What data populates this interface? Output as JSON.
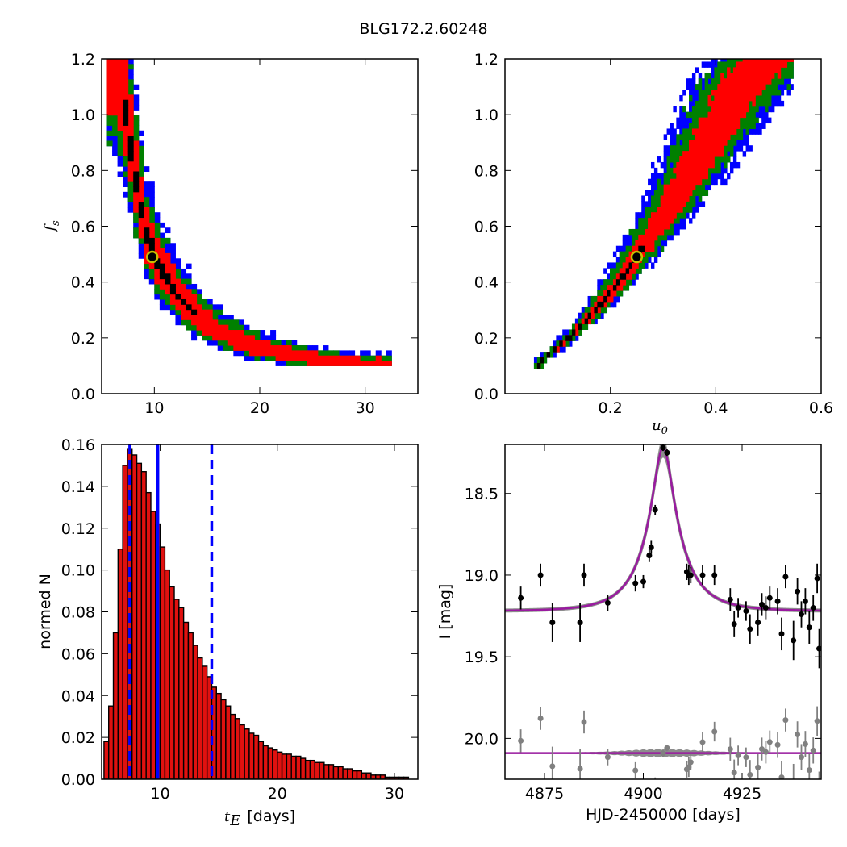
{
  "figure_title": "BLG172.2.60248",
  "colors": {
    "sigma3": "#0000ff",
    "sigma2": "#008000",
    "sigma1": "#ff0000",
    "best": "#000000",
    "marker_fill": "#000000",
    "marker_edge": "#c8c000",
    "hist_bar": "#e0110f",
    "hist_edge": "#000000",
    "quantile_line": "#0000ff",
    "model": "#9a1aa0",
    "model_band": "#808080",
    "data_primary": "#000000",
    "data_residual": "#808080"
  },
  "chart_data": [
    {
      "type": "heatmap",
      "panel": "fs-vs-tE",
      "ylabel": "f_s",
      "xlim": [
        5,
        35
      ],
      "ylim": [
        0.0,
        1.2
      ],
      "xticks": [
        "10",
        "20",
        "30"
      ],
      "yticks": [
        "0.0",
        "0.2",
        "0.4",
        "0.6",
        "0.8",
        "1.0",
        "1.2"
      ],
      "ridge": {
        "x": [
          6.0,
          7.0,
          8.0,
          9.0,
          10.0,
          12.0,
          14.0,
          17.0,
          20.0,
          24.0,
          28.0,
          32.0
        ],
        "y": [
          1.2,
          1.0,
          0.75,
          0.56,
          0.46,
          0.34,
          0.26,
          0.19,
          0.15,
          0.12,
          0.1,
          0.1
        ]
      },
      "best_fit": {
        "x": 9.8,
        "y": 0.49
      }
    },
    {
      "type": "heatmap",
      "panel": "fs-vs-u0",
      "xlabel": "u_0",
      "xlim": [
        0.0,
        0.6
      ],
      "ylim": [
        0.0,
        1.2
      ],
      "xticks": [
        "0.2",
        "0.4",
        "0.6"
      ],
      "yticks": [
        "0.0",
        "0.2",
        "0.4",
        "0.6",
        "0.8",
        "1.0",
        "1.2"
      ],
      "ridge": {
        "x": [
          0.06,
          0.1,
          0.15,
          0.2,
          0.25,
          0.3,
          0.35,
          0.4,
          0.45,
          0.5
        ],
        "y": [
          0.1,
          0.16,
          0.25,
          0.36,
          0.49,
          0.63,
          0.78,
          0.95,
          1.1,
          1.2
        ]
      },
      "best_fit": {
        "x": 0.25,
        "y": 0.49
      }
    },
    {
      "type": "bar",
      "panel": "tE-histogram",
      "xlabel": "t_E",
      "xlabel_unit": "[days]",
      "ylabel": "normed N",
      "xlim": [
        5,
        32
      ],
      "ylim": [
        0.0,
        0.16
      ],
      "xticks": [
        "10",
        "20",
        "30"
      ],
      "yticks": [
        "0.00",
        "0.02",
        "0.04",
        "0.06",
        "0.08",
        "0.10",
        "0.12",
        "0.14",
        "0.16"
      ],
      "bin_width": 0.4,
      "bin_start": 5.2,
      "values": [
        0.018,
        0.035,
        0.07,
        0.11,
        0.15,
        0.158,
        0.155,
        0.151,
        0.147,
        0.137,
        0.128,
        0.122,
        0.111,
        0.1,
        0.092,
        0.086,
        0.082,
        0.075,
        0.07,
        0.064,
        0.058,
        0.054,
        0.049,
        0.044,
        0.041,
        0.038,
        0.035,
        0.031,
        0.029,
        0.026,
        0.024,
        0.022,
        0.021,
        0.018,
        0.016,
        0.015,
        0.014,
        0.013,
        0.012,
        0.012,
        0.011,
        0.011,
        0.01,
        0.009,
        0.009,
        0.008,
        0.008,
        0.007,
        0.007,
        0.006,
        0.006,
        0.005,
        0.005,
        0.004,
        0.004,
        0.003,
        0.003,
        0.002,
        0.002,
        0.002,
        0.001,
        0.001,
        0.001,
        0.001,
        0.001,
        0.0,
        0.0
      ],
      "median_line": 9.8,
      "quantile_lines": [
        7.4,
        14.4
      ]
    },
    {
      "type": "scatter",
      "panel": "lightcurve",
      "xlabel": "HJD-2450000 [days]",
      "ylabel": "I [mag]",
      "xlim": [
        4865,
        4945
      ],
      "ylim": [
        20.25,
        18.2
      ],
      "xticks": [
        "4875",
        "4900",
        "4925"
      ],
      "yticks": [
        "18.5",
        "19.0",
        "19.5",
        "20.0"
      ],
      "model": {
        "t0": 4905.0,
        "tE": 9.8,
        "u0": 0.25,
        "fs": 0.49,
        "baseline": 19.22
      },
      "residual_offset": 20.09,
      "series": [
        {
          "t": [
            4869,
            4874,
            4877,
            4884,
            4885,
            4891,
            4898,
            4900,
            4901.5,
            4902,
            4903,
            4905,
            4906,
            4911,
            4911.5,
            4912,
            4915,
            4918,
            4922,
            4923,
            4924,
            4926,
            4927,
            4929,
            4930,
            4931,
            4932,
            4934,
            4935,
            4936,
            4938,
            4939,
            4940,
            4941,
            4942,
            4943,
            4944,
            4944.5
          ],
          "mag": [
            19.14,
            19.0,
            19.29,
            19.29,
            19.0,
            19.17,
            19.05,
            19.04,
            18.88,
            18.83,
            18.6,
            18.22,
            18.25,
            18.98,
            19.0,
            19.0,
            19.0,
            19.0,
            19.15,
            19.3,
            19.2,
            19.22,
            19.33,
            19.29,
            19.18,
            19.2,
            19.14,
            19.16,
            19.36,
            19.01,
            19.4,
            19.1,
            19.24,
            19.16,
            19.32,
            19.2,
            19.02,
            19.45
          ],
          "err": [
            0.07,
            0.07,
            0.12,
            0.12,
            0.07,
            0.05,
            0.05,
            0.04,
            0.04,
            0.04,
            0.03,
            0.02,
            0.02,
            0.05,
            0.06,
            0.05,
            0.06,
            0.06,
            0.07,
            0.08,
            0.06,
            0.06,
            0.09,
            0.08,
            0.07,
            0.07,
            0.07,
            0.08,
            0.1,
            0.07,
            0.12,
            0.08,
            0.08,
            0.08,
            0.1,
            0.08,
            0.09,
            0.12
          ]
        }
      ]
    }
  ]
}
